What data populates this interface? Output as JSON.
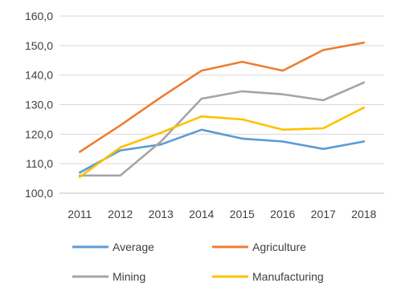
{
  "chart_data": {
    "type": "line",
    "title": "",
    "xlabel": "",
    "ylabel": "",
    "categories": [
      "2011",
      "2012",
      "2013",
      "2014",
      "2015",
      "2016",
      "2017",
      "2018"
    ],
    "ylim": [
      100,
      160
    ],
    "y_ticks": [
      "100,0",
      "110,0",
      "120,0",
      "130,0",
      "140,0",
      "150,0",
      "160,0"
    ],
    "grid": true,
    "legend_position": "bottom",
    "series": [
      {
        "name": "Average",
        "color": "#5B9BD5",
        "values": [
          107.0,
          114.5,
          116.5,
          121.5,
          118.5,
          117.5,
          115.0,
          117.5
        ]
      },
      {
        "name": "Agriculture",
        "color": "#ED7D31",
        "values": [
          114.0,
          123.0,
          132.5,
          141.5,
          144.5,
          141.5,
          148.5,
          151.0
        ]
      },
      {
        "name": "Mining",
        "color": "#A5A5A5",
        "values": [
          106.0,
          106.0,
          117.5,
          132.0,
          134.5,
          133.5,
          131.5,
          137.5
        ]
      },
      {
        "name": "Manufacturing",
        "color": "#FFC000",
        "values": [
          105.5,
          115.5,
          120.5,
          126.0,
          125.0,
          121.5,
          122.0,
          129.0
        ]
      }
    ]
  }
}
